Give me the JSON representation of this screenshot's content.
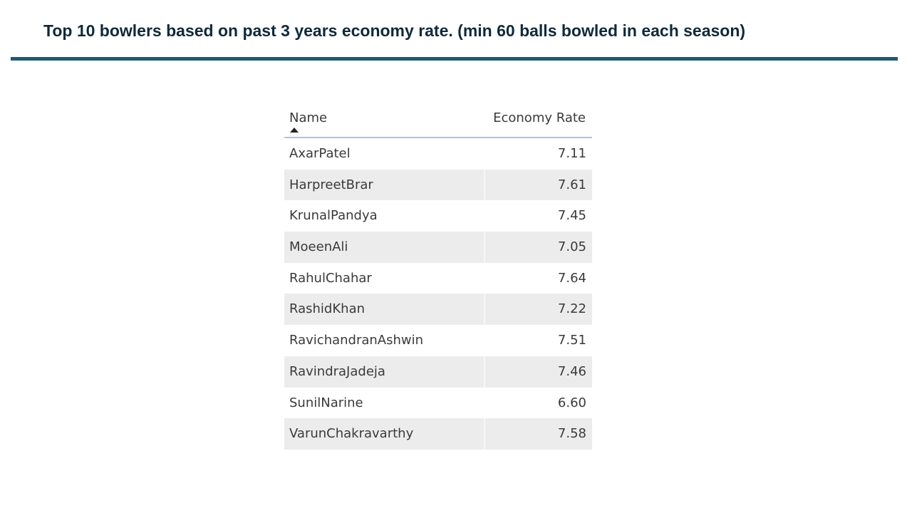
{
  "slide": {
    "title": "Top 10 bowlers based on past 3 years economy rate. (min 60 balls bowled in each season)"
  },
  "table": {
    "columns": [
      "Name",
      "Economy Rate"
    ],
    "sort_icon": "sort-ascending-icon",
    "rows": [
      {
        "name": "AxarPatel",
        "rate": "7.11"
      },
      {
        "name": "HarpreetBrar",
        "rate": "7.61"
      },
      {
        "name": "KrunalPandya",
        "rate": "7.45"
      },
      {
        "name": "MoeenAli",
        "rate": "7.05"
      },
      {
        "name": "RahulChahar",
        "rate": "7.64"
      },
      {
        "name": "RashidKhan",
        "rate": "7.22"
      },
      {
        "name": "RavichandranAshwin",
        "rate": "7.51"
      },
      {
        "name": "RavindraJadeja",
        "rate": "7.46"
      },
      {
        "name": "SunilNarine",
        "rate": "6.60"
      },
      {
        "name": "VarunChakravarthy",
        "rate": "7.58"
      }
    ]
  },
  "colors": {
    "title_text": "#0f2a3a",
    "title_rule": "#1c5a72",
    "header_underline": "#a9c8e4",
    "alt_row": "#ececec"
  }
}
